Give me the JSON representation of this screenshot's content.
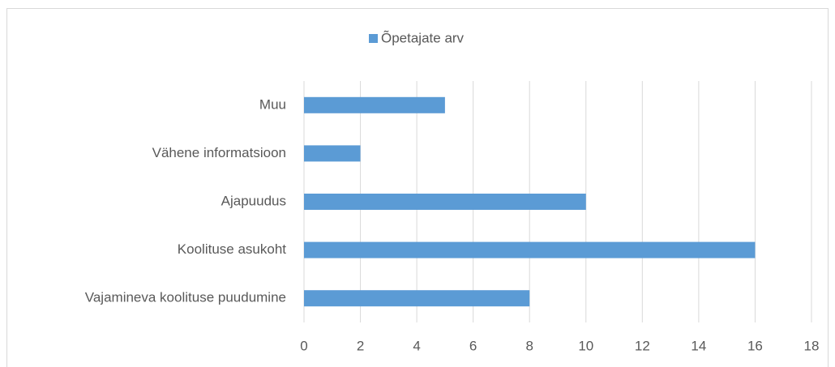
{
  "chart_data": {
    "type": "hbar",
    "categories": [
      "Muu",
      "Vähene informatsioon",
      "Ajapuudus",
      "Koolituse asukoht",
      "Vajamineva koolituse puudumine"
    ],
    "series": [
      {
        "name": "Õpetajate arv",
        "color": "#5b9bd5",
        "values": [
          5,
          2,
          10,
          16,
          8
        ]
      }
    ],
    "xlim": [
      0,
      18
    ],
    "xticks": [
      0,
      2,
      4,
      6,
      8,
      10,
      12,
      14,
      16,
      18
    ],
    "grid": true,
    "legend": "top"
  }
}
